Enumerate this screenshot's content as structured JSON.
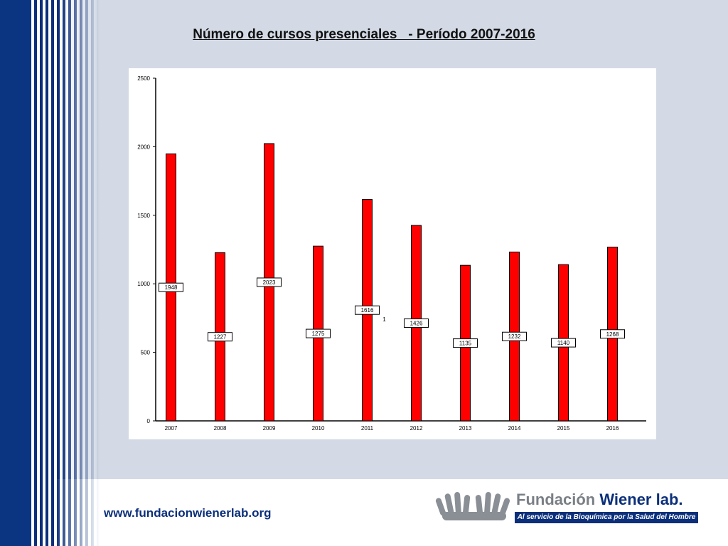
{
  "slide": {
    "title": "Número de cursos presenciales   - Período 2007-2016",
    "website": "www.fundacionwienerlab.org",
    "logo": {
      "name_part1": "Fundación ",
      "name_part2": "Wiener lab.",
      "tagline": "Al servicio de la Bioquímica por la Salud del Hombre"
    }
  },
  "colors": {
    "bar": "#ff0000",
    "accent": "#0b2f7a"
  },
  "chart_data": {
    "type": "bar",
    "categories": [
      "2007",
      "2008",
      "2009",
      "2010",
      "2011",
      "2012",
      "2013",
      "2014",
      "2015",
      "2016"
    ],
    "values": [
      1948,
      1227,
      2023,
      1275,
      1616,
      1426,
      1135,
      1232,
      1140,
      1268
    ],
    "data_labels": [
      "1948",
      "1227",
      "2023",
      "1275",
      "1616",
      "1426",
      "1135",
      "1232",
      "1140",
      "1268"
    ],
    "annotation": "1",
    "ylim": [
      0,
      2500
    ],
    "yticks": [
      0,
      500,
      1000,
      1500,
      2000,
      2500
    ],
    "ytick_labels": [
      "0",
      "500",
      "1000",
      "1500",
      "2000",
      "2500"
    ],
    "grid": false,
    "legend": "none"
  }
}
